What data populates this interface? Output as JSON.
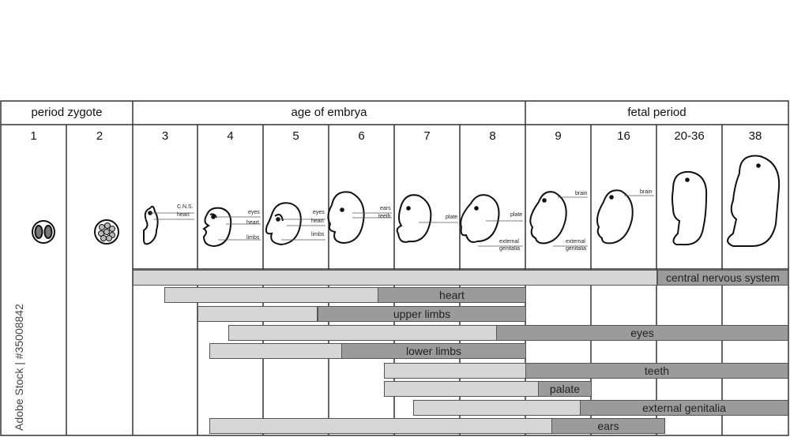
{
  "headers": {
    "zygote": "period zygote",
    "embryo": "age of embrya",
    "fetal": "fetal period"
  },
  "weeks": [
    "1",
    "2",
    "3",
    "4",
    "5",
    "6",
    "7",
    "8",
    "9",
    "16",
    "20-36",
    "38"
  ],
  "watermark_text": "Adobe Stock | #35008842",
  "labels": {
    "cns": "C.N.S.",
    "heart": "heart",
    "eyes": "eyes",
    "limbs": "limbs",
    "ears": "ears",
    "teeth": "teeth",
    "plate": "plate",
    "external": "external",
    "genitalia": "genitalia",
    "brain": "brain"
  },
  "bars": [
    {
      "label": "central nervous system",
      "light_from": "3",
      "dark_from": "20-36",
      "to": "38"
    },
    {
      "label": "heart",
      "light_from": "3",
      "dark_from": "6-7",
      "to": "8"
    },
    {
      "label": "upper limbs",
      "light_from": "4",
      "dark_from": "5-6",
      "to": "8"
    },
    {
      "label": "eyes",
      "light_from": "4-5",
      "dark_from": "7-8",
      "to": "38"
    },
    {
      "label": "lower limbs",
      "light_from": "4",
      "dark_from": "6",
      "to": "8"
    },
    {
      "label": "teeth",
      "light_from": "7",
      "dark_from": "9",
      "to": "38"
    },
    {
      "label": "palate",
      "light_from": "7",
      "dark_from": "9",
      "to": "16"
    },
    {
      "label": "external genitalia",
      "light_from": "7-8",
      "dark_from": "16",
      "to": "38"
    },
    {
      "label": "ears",
      "light_from": "4",
      "dark_from": "9",
      "to": "20-36"
    }
  ]
}
